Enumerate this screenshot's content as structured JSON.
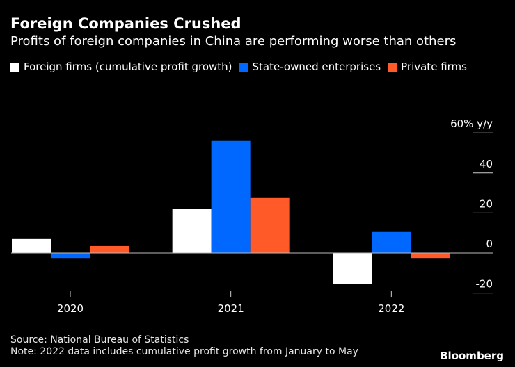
{
  "title": "Foreign Companies Crushed",
  "subtitle": "Profits of foreign companies in China are performing worse than others",
  "source": "Source: National Bureau of Statistics",
  "note": "Note: 2022 data includes cumulative profit growth from January to May",
  "brand": "Bloomberg",
  "chart_data": {
    "type": "bar",
    "categories": [
      "2020",
      "2021",
      "2022"
    ],
    "series": [
      {
        "name": "Foreign firms (cumulative profit growth)",
        "color": "#ffffff",
        "values": [
          7,
          22,
          -15.5
        ]
      },
      {
        "name": "State-owned enterprises",
        "color": "#0068ff",
        "values": [
          -2.5,
          56,
          10.5
        ]
      },
      {
        "name": "Private firms",
        "color": "#ff5a28",
        "values": [
          3.5,
          27.5,
          -2.5
        ]
      }
    ],
    "yticks": [
      -20,
      0,
      20,
      40,
      60
    ],
    "ytick_labels": [
      "-20",
      "0",
      "20",
      "40",
      "60% y/y"
    ],
    "ylim": [
      -25,
      62
    ],
    "xlabel": "",
    "ylabel": "% y/y"
  }
}
